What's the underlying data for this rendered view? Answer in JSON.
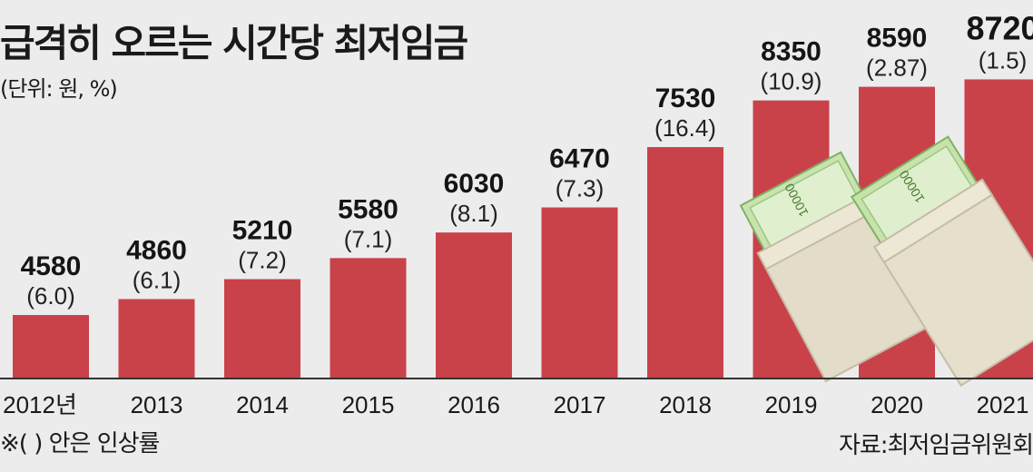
{
  "title": "급격히 오르는 시간당 최저임금",
  "unit_note": "(단위: 원, %)",
  "footnote": "※( ) 안은 인상률",
  "source": "자료:최저임금위원회",
  "colors": {
    "bar": "#c9424a",
    "background": "#ececec",
    "baseline": "#333333"
  },
  "chart_data": {
    "type": "bar",
    "title": "급격히 오르는 시간당 최저임금",
    "categories": [
      "2012년",
      "2013",
      "2014",
      "2015",
      "2016",
      "2017",
      "2018",
      "2019",
      "2020",
      "2021"
    ],
    "values": [
      4580,
      4860,
      5210,
      5580,
      6030,
      6470,
      7530,
      8350,
      8590,
      8720
    ],
    "value_labels": [
      "4580",
      "4860",
      "5210",
      "5580",
      "6030",
      "6470",
      "7530",
      "8350",
      "8590",
      "8720"
    ],
    "rate_labels": [
      "(6.0)",
      "(6.1)",
      "(7.2)",
      "(7.1)",
      "(8.1)",
      "(7.3)",
      "(16.4)",
      "(10.9)",
      "(2.87)",
      "(1.5)"
    ],
    "ylabel": "",
    "grid": false,
    "legend": "none",
    "illustration": "banknotes-in-envelopes-icon"
  }
}
